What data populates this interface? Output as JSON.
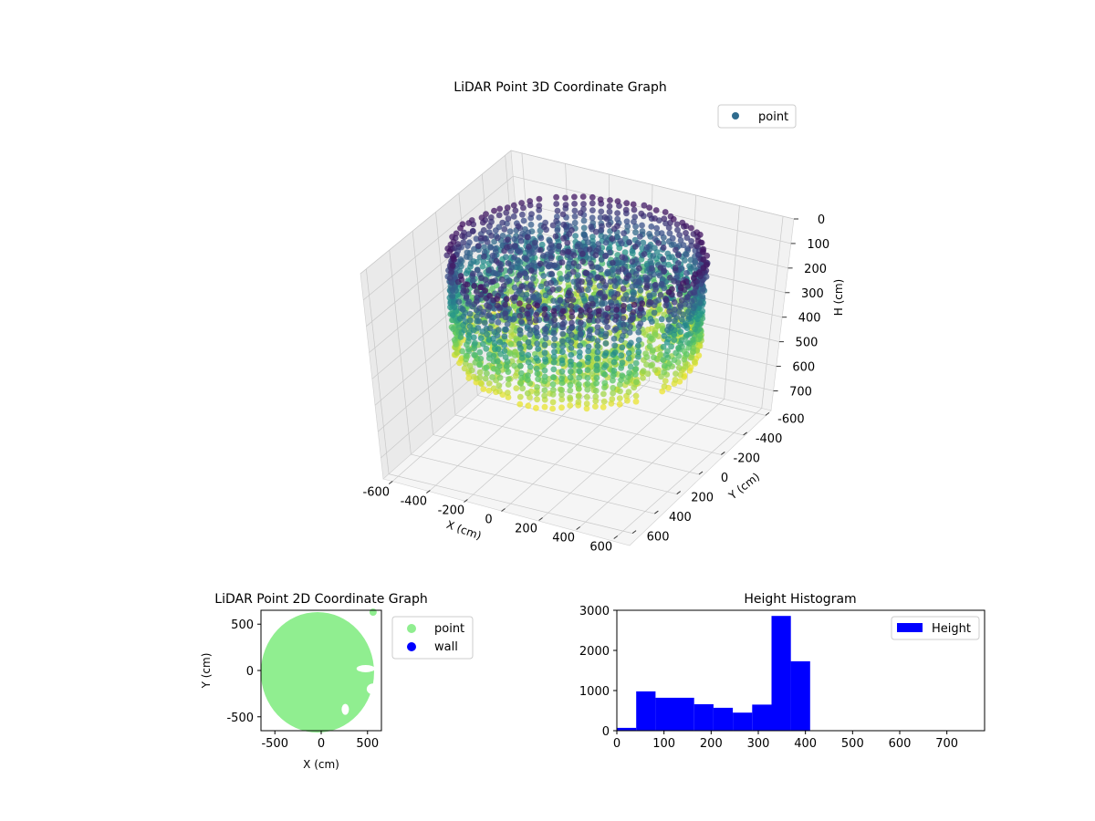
{
  "colors": {
    "viridis_dark": "#440154",
    "viridis_teal": "#21918c",
    "viridis_yellow": "#fde725",
    "point_legend": "#2f6c8e",
    "point_2d": "#90ee90",
    "wall_2d": "#0000ff",
    "histogram": "#0000ff"
  },
  "chart_data": [
    {
      "type": "scatter3d",
      "title": "LiDAR Point 3D Coordinate Graph",
      "xlabel": "X (cm)",
      "ylabel": "Y (cm)",
      "zlabel": "H (cm)",
      "x_ticks": [
        "-600",
        "-400",
        "-200",
        "0",
        "200",
        "400",
        "600"
      ],
      "y_ticks": [
        "-600",
        "-400",
        "-200",
        "0",
        "200",
        "400",
        "600"
      ],
      "z_ticks": [
        "0",
        "100",
        "200",
        "300",
        "400",
        "500",
        "600",
        "700"
      ],
      "xlim": [
        -650,
        650
      ],
      "ylim": [
        -650,
        650
      ],
      "zlim": [
        0,
        780
      ],
      "z_inverted": true,
      "colormap": "viridis",
      "legend": [
        "point"
      ],
      "legend_position": "top-right",
      "grid": true
    },
    {
      "type": "scatter",
      "title": "LiDAR Point 2D Coordinate Graph",
      "xlabel": "X (cm)",
      "ylabel": "Y (cm)",
      "x_ticks": [
        "-500",
        "0",
        "500"
      ],
      "y_ticks": [
        "500",
        "0",
        "-500"
      ],
      "xlim": [
        -650,
        650
      ],
      "ylim": [
        -650,
        650
      ],
      "series": [
        {
          "name": "point",
          "color": "#90ee90"
        },
        {
          "name": "wall",
          "color": "#0000ff"
        }
      ],
      "legend_position": "outside-right"
    },
    {
      "type": "bar",
      "title": "Height Histogram",
      "x_ticks": [
        "0",
        "100",
        "200",
        "300",
        "400",
        "500",
        "600",
        "700"
      ],
      "y_ticks": [
        "0",
        "1000",
        "2000",
        "3000"
      ],
      "xlim": [
        0,
        780
      ],
      "ylim": [
        0,
        3000
      ],
      "bin_edges": [
        0,
        41,
        82,
        123,
        164,
        205,
        246,
        287,
        328,
        369,
        410
      ],
      "values": [
        70,
        980,
        820,
        820,
        660,
        570,
        450,
        650,
        2860,
        1730
      ],
      "legend": [
        "Height"
      ],
      "legend_position": "top-right",
      "color": "#0000ff"
    }
  ]
}
